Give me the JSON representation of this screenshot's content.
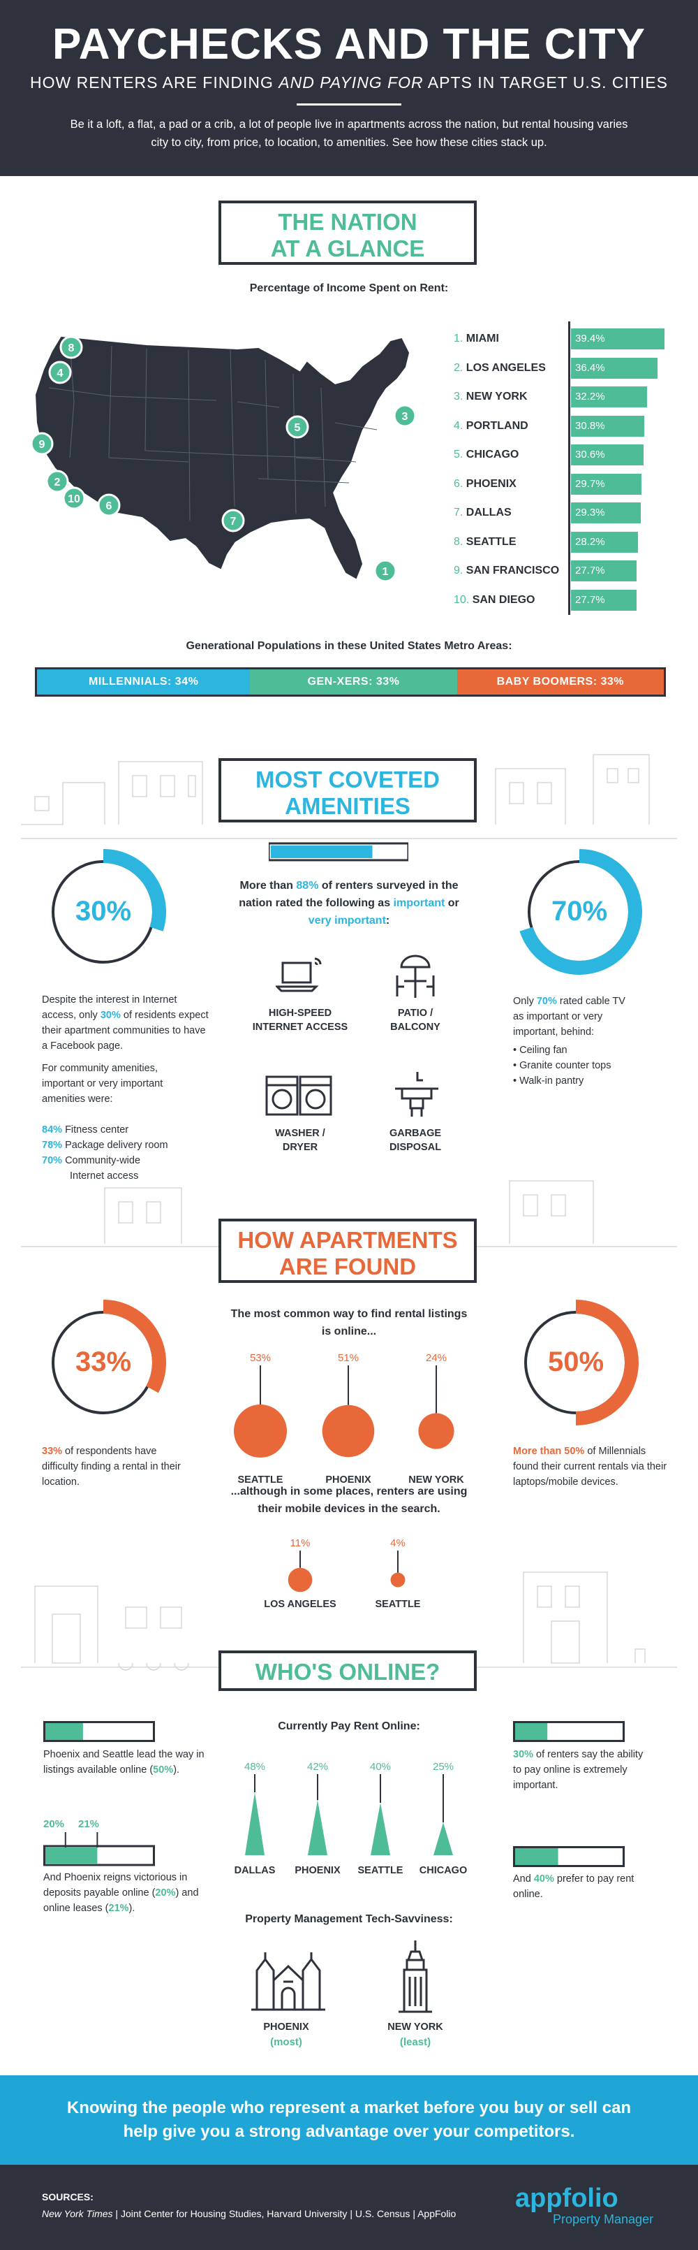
{
  "header": {
    "title": "PAYCHECKS AND THE CITY",
    "subtitle_a": "HOW RENTERS ARE FINDING ",
    "subtitle_em": "AND PAYING FOR",
    "subtitle_b": " APTS IN TARGET U.S. CITIES",
    "intro": "Be it a loft, a flat, a pad or a crib, a lot of people live in apartments across the nation, but rental housing varies city to city, from price, to location, to amenities. See how these cities stack up."
  },
  "nation": {
    "title_1": "THE NATION",
    "title_2": "AT A GLANCE",
    "chart_title": "Percentage of Income Spent on Rent:",
    "map_markers": [
      "8",
      "4",
      "9",
      "2",
      "10",
      "6",
      "7",
      "5",
      "3",
      "1"
    ]
  },
  "chart_data": {
    "type": "bar",
    "title": "Percentage of Income Spent on Rent:",
    "categories": [
      "MIAMI",
      "LOS ANGELES",
      "NEW YORK",
      "PORTLAND",
      "CHICAGO",
      "PHOENIX",
      "DALLAS",
      "SEATTLE",
      "SAN FRANCISCO",
      "SAN DIEGO"
    ],
    "ranks": [
      "1.",
      "2.",
      "3.",
      "4.",
      "5.",
      "6.",
      "7.",
      "8.",
      "9.",
      "10."
    ],
    "values": [
      39.4,
      36.4,
      32.2,
      30.8,
      30.6,
      29.7,
      29.3,
      28.2,
      27.7,
      27.7
    ],
    "labels": [
      "39.4%",
      "36.4%",
      "32.2%",
      "30.8%",
      "30.6%",
      "29.7%",
      "29.3%",
      "28.2%",
      "27.7%",
      "27.7%"
    ],
    "unit": "%"
  },
  "generations": {
    "heading": "Generational Populations in these United States Metro Areas:",
    "segments": [
      {
        "label": "MILLENNIALS: 34%",
        "value": 34,
        "color": "#2bb5df"
      },
      {
        "label": "GEN-XERS: 33%",
        "value": 33,
        "color": "#4dbc97"
      },
      {
        "label": "BABY BOOMERS: 33%",
        "value": 33,
        "color": "#e8683a"
      }
    ]
  },
  "amenities": {
    "title_1": "MOST COVETED",
    "title_2": "AMENITIES",
    "left_pct": "30%",
    "left_value": 30,
    "left_text_a": "Despite the interest in Internet access, only ",
    "left_text_hl": "30%",
    "left_text_b": " of residents expect their apartment communities to have a Facebook page.",
    "community_intro": "For community amenities, important or very important amenities were:",
    "community": [
      {
        "pct": "84%",
        "label": "Fitness center"
      },
      {
        "pct": "78%",
        "label": "Package delivery room"
      },
      {
        "pct": "70%",
        "label": "Community-wide"
      }
    ],
    "community_cont": "Internet access",
    "center_a": "More than ",
    "center_hl": "88%",
    "center_b": " of renters surveyed in the nation rated the following as ",
    "center_imp": "important",
    "center_or": " or ",
    "center_vimp": "very important",
    "center_end": ":",
    "items": [
      "HIGH-SPEED INTERNET ACCESS",
      "PATIO / BALCONY",
      "WASHER / DRYER",
      "GARBAGE DISPOSAL"
    ],
    "item_lines": [
      [
        "HIGH-SPEED",
        "INTERNET ACCESS"
      ],
      [
        "PATIO /",
        "BALCONY"
      ],
      [
        "WASHER /",
        "DRYER"
      ],
      [
        "GARBAGE",
        "DISPOSAL"
      ]
    ],
    "right_pct": "70%",
    "right_value": 70,
    "right_text_a": "Only ",
    "right_text_hl": "70%",
    "right_text_b": " rated cable TV as important or very important, behind:",
    "right_list": [
      "Ceiling fan",
      "Granite counter tops",
      "Walk-in pantry"
    ],
    "progress_fraction": 0.75
  },
  "found": {
    "title_1": "HOW APARTMENTS",
    "title_2": "ARE FOUND",
    "left_pct": "33%",
    "left_value": 33,
    "left_hl": "33%",
    "left_text": " of respondents have difficulty finding a rental in their location.",
    "center_heading": "The most common way to find rental listings is online...",
    "online": [
      {
        "pct": "53%",
        "value": 53,
        "city": "SEATTLE"
      },
      {
        "pct": "51%",
        "value": 51,
        "city": "PHOENIX"
      },
      {
        "pct": "24%",
        "value": 24,
        "city": "NEW YORK"
      }
    ],
    "mobile_heading": "...although in some places, renters are using their mobile devices in the search.",
    "mobile": [
      {
        "pct": "11%",
        "value": 11,
        "city": "LOS ANGELES"
      },
      {
        "pct": "4%",
        "value": 4,
        "city": "SEATTLE"
      }
    ],
    "right_pct": "50%",
    "right_value": 50,
    "right_hl": "More than 50%",
    "right_text": " of Millennials found their current rentals via their laptops/mobile devices."
  },
  "online": {
    "title": "WHO'S ONLINE?",
    "left_text_a": "Phoenix and Seattle lead the way in listings available online (",
    "left_text_hl": "50%",
    "left_text_b": ").",
    "left_value": 50,
    "deposit_pcts": [
      "20%",
      "21%"
    ],
    "deposit_values": [
      20,
      21
    ],
    "deposit_text_a": "And Phoenix reigns victorious in deposits payable online (",
    "deposit_hl1": "20%",
    "deposit_mid": ") and online leases (",
    "deposit_hl2": "21%",
    "deposit_end": ").",
    "pay_heading": "Currently Pay Rent Online:",
    "pay": [
      {
        "pct": "48%",
        "value": 48,
        "city": "DALLAS"
      },
      {
        "pct": "42%",
        "value": 42,
        "city": "PHOENIX"
      },
      {
        "pct": "40%",
        "value": 40,
        "city": "SEATTLE"
      },
      {
        "pct": "25%",
        "value": 25,
        "city": "CHICAGO"
      }
    ],
    "right_hl1": "30%",
    "right_text1": " of renters say the ability to pay online is extremely important.",
    "right_value1": 30,
    "right_text2_a": "And ",
    "right_hl2": "40%",
    "right_text2_b": " prefer to pay rent online.",
    "right_value2": 40,
    "tech_heading": "Property Management Tech-Savviness:",
    "tech": [
      {
        "city": "PHOENIX",
        "note": "(most)"
      },
      {
        "city": "NEW YORK",
        "note": "(least)"
      }
    ]
  },
  "cta": {
    "line1": "Knowing the people who represent a market before you buy or sell can",
    "line2": "help give you a strong advantage over your competitors."
  },
  "footer": {
    "label": "SOURCES:",
    "nyt": "New York Times",
    "rest": " | Joint Center for Housing Studies, Harvard University | U.S. Census | AppFolio",
    "logo_main": "appfolio",
    "logo_sub": "Property Manager"
  },
  "colors": {
    "dark": "#2d323c",
    "green": "#4dbc97",
    "blue": "#2bb5df",
    "orange": "#e8683a"
  }
}
